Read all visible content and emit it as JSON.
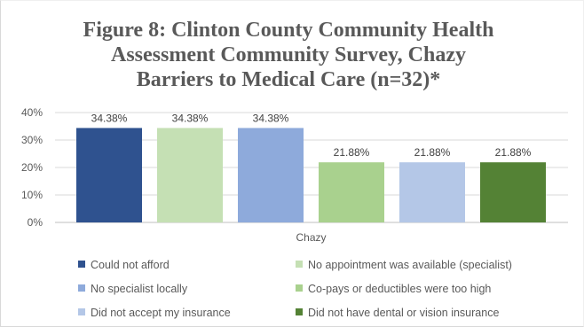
{
  "title_lines": [
    "Figure 8: Clinton County Community Health",
    "Assessment Community Survey, Chazy",
    "Barriers to Medical Care (n=32)*"
  ],
  "chart_data": {
    "type": "bar",
    "categories": [
      "Chazy"
    ],
    "xlabel": "Chazy",
    "ylim": [
      0,
      40
    ],
    "yticks": [
      "0%",
      "10%",
      "20%",
      "30%",
      "40%"
    ],
    "grid": true,
    "legend_position": "bottom",
    "series": [
      {
        "name": "Could not afford",
        "values": [
          34.38
        ],
        "label": "34.38%",
        "color": "#2f528f"
      },
      {
        "name": "No appointment was available (specialist)",
        "values": [
          34.38
        ],
        "label": "34.38%",
        "color": "#c5e0b4"
      },
      {
        "name": "No specialist locally",
        "values": [
          34.38
        ],
        "label": "34.38%",
        "color": "#8eaadb"
      },
      {
        "name": "Co-pays or deductibles were too high",
        "values": [
          21.88
        ],
        "label": "21.88%",
        "color": "#a9d18e"
      },
      {
        "name": "Did not accept my insurance",
        "values": [
          21.88
        ],
        "label": "21.88%",
        "color": "#b4c7e7"
      },
      {
        "name": "Did not have dental or vision insurance",
        "values": [
          21.88
        ],
        "label": "21.88%",
        "color": "#548235"
      }
    ]
  }
}
